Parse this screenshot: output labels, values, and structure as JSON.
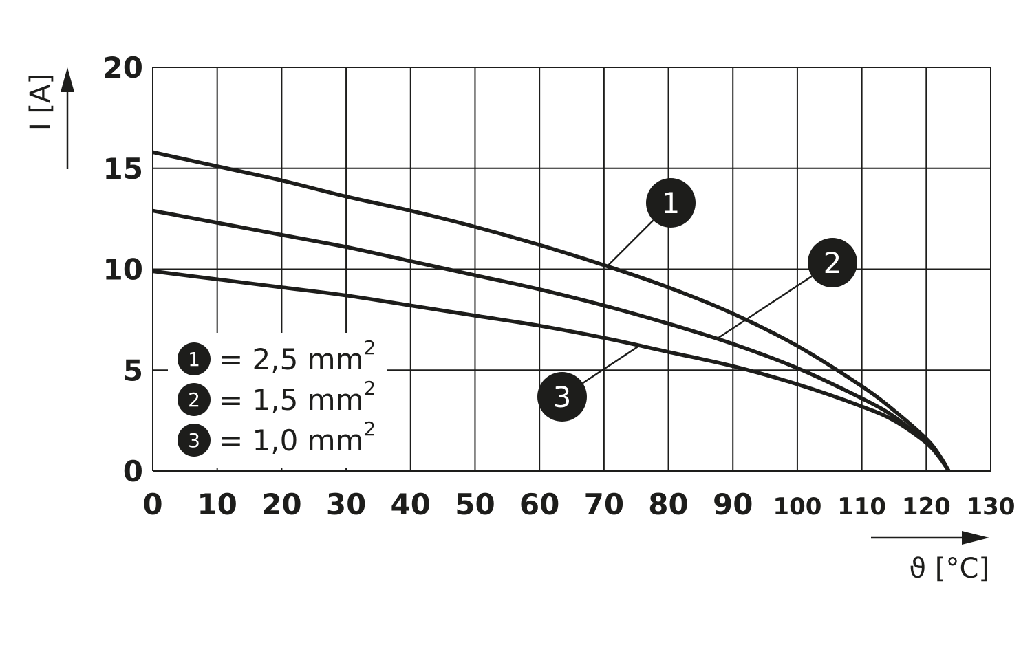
{
  "chart_data": {
    "type": "line",
    "xlabel": "ϑ [°C]",
    "ylabel": "I [A]",
    "xlim": [
      0,
      130
    ],
    "ylim": [
      0,
      20
    ],
    "grid": true,
    "x_ticks": [
      "0",
      "10",
      "20",
      "30",
      "40",
      "50",
      "60",
      "70",
      "80",
      "90",
      "100",
      "110",
      "120",
      "130"
    ],
    "y_ticks": [
      "0",
      "5",
      "10",
      "15",
      "20"
    ],
    "series": [
      {
        "name": "1",
        "x": [
          0,
          10,
          20,
          30,
          40,
          50,
          60,
          70,
          80,
          90,
          100,
          110,
          115,
          120,
          122,
          123.5
        ],
        "y": [
          15.8,
          15.1,
          14.4,
          13.6,
          12.9,
          12.1,
          11.2,
          10.2,
          9.1,
          7.8,
          6.2,
          4.2,
          3.0,
          1.6,
          0.8,
          0
        ]
      },
      {
        "name": "2",
        "x": [
          0,
          10,
          20,
          30,
          40,
          50,
          60,
          70,
          80,
          90,
          100,
          110,
          115,
          120,
          122,
          123.5
        ],
        "y": [
          12.9,
          12.3,
          11.7,
          11.1,
          10.4,
          9.7,
          9.0,
          8.2,
          7.3,
          6.3,
          5.1,
          3.6,
          2.7,
          1.4,
          0.7,
          0
        ]
      },
      {
        "name": "3",
        "x": [
          0,
          10,
          20,
          30,
          40,
          50,
          60,
          70,
          80,
          90,
          100,
          110,
          115,
          120,
          122,
          123.5
        ],
        "y": [
          9.9,
          9.5,
          9.1,
          8.7,
          8.2,
          7.7,
          7.2,
          6.6,
          5.9,
          5.2,
          4.3,
          3.2,
          2.5,
          1.4,
          0.7,
          0
        ]
      }
    ],
    "legend": [
      {
        "marker": "1",
        "text": "= 2,5 mm",
        "sup": "2"
      },
      {
        "marker": "2",
        "text": "= 1,5 mm",
        "sup": "2"
      },
      {
        "marker": "3",
        "text": "= 1,0 mm",
        "sup": "2"
      }
    ],
    "callouts": [
      {
        "label": "1",
        "series": "1",
        "at_x": 70.5
      },
      {
        "label": "2",
        "series": "2",
        "at_x": 87.5
      },
      {
        "label": "3",
        "series": "3",
        "at_x": 75.5
      }
    ],
    "line_color": "#1d1d1b",
    "marker_fill": "#1d1d1b",
    "marker_text_color": "#ffffff"
  }
}
